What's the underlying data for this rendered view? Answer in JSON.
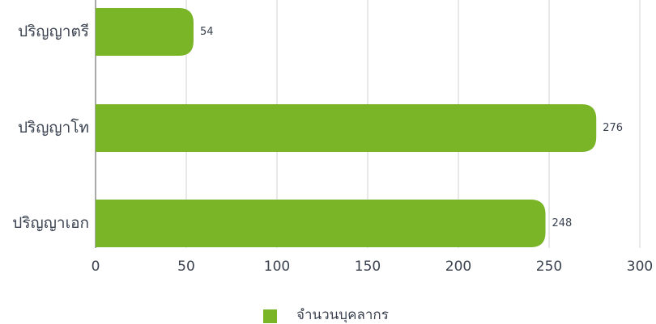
{
  "chart_data": {
    "type": "hbar",
    "categories": [
      "ปริญญาตรี",
      "ปริญญาโท",
      "ปริญญาเอก"
    ],
    "series": [
      {
        "name": "จำนวนบุคลากร",
        "color": "#7ab427",
        "values": [
          54,
          276,
          248
        ]
      }
    ],
    "xlim": [
      0,
      300
    ],
    "xticks": [
      0,
      50,
      100,
      150,
      200,
      250,
      300
    ],
    "grid": true,
    "legend": "bottom"
  }
}
